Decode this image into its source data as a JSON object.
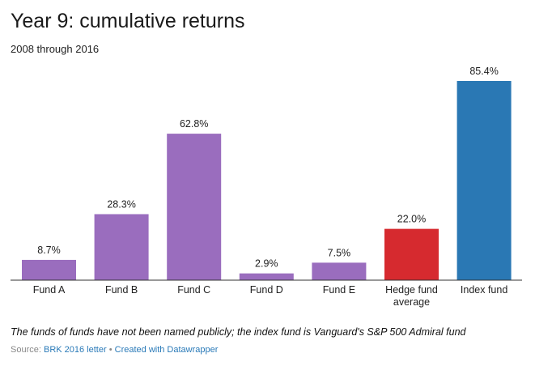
{
  "header": {
    "title": "Year 9: cumulative returns",
    "subtitle": "2008 through 2016"
  },
  "footer": {
    "note": "The funds of funds have not been named publicly; the index fund is Vanguard's S&P 500 Admiral fund",
    "source_label": "Source:",
    "source_link": "BRK 2016 letter",
    "separator": "•",
    "credit_link": "Created with Datawrapper"
  },
  "colors": {
    "fund": "#9a6dbe",
    "hedge": "#d62a2f",
    "index": "#2a78b4"
  },
  "chart_data": {
    "type": "bar",
    "title": "Year 9: cumulative returns",
    "subtitle": "2008 through 2016",
    "ylim": [
      0,
      85.4
    ],
    "grid": false,
    "categories": [
      [
        "Fund A"
      ],
      [
        "Fund B"
      ],
      [
        "Fund C"
      ],
      [
        "Fund D"
      ],
      [
        "Fund E"
      ],
      [
        "Hedge fund",
        "average"
      ],
      [
        "Index fund"
      ]
    ],
    "values": [
      8.7,
      28.3,
      62.8,
      2.9,
      7.5,
      22.0,
      85.4
    ],
    "labels": [
      "8.7%",
      "28.3%",
      "62.8%",
      "2.9%",
      "7.5%",
      "22.0%",
      "85.4%"
    ],
    "bar_colors": [
      "#9a6dbe",
      "#9a6dbe",
      "#9a6dbe",
      "#9a6dbe",
      "#9a6dbe",
      "#d62a2f",
      "#2a78b4"
    ]
  }
}
